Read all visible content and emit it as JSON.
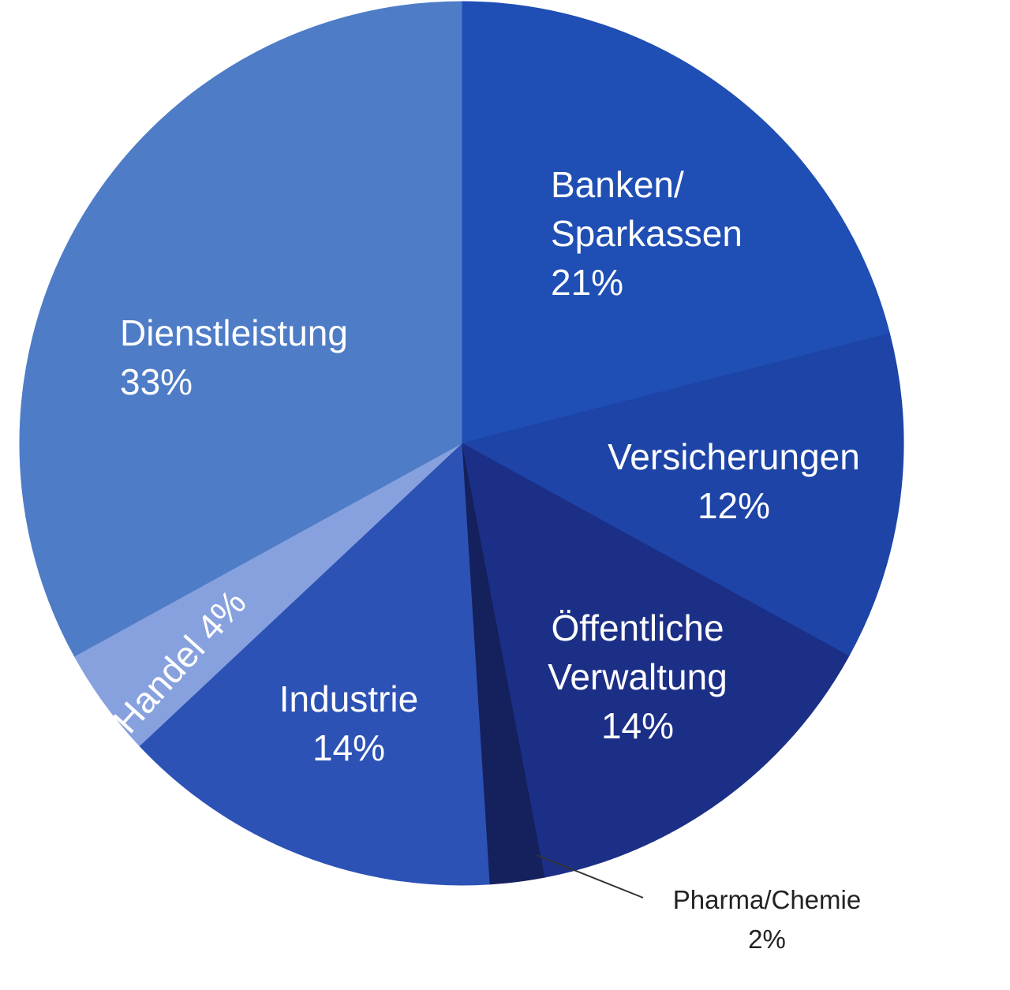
{
  "chart_data": {
    "type": "pie",
    "title": "",
    "slices": [
      {
        "name": "Banken/",
        "name2": "Sparkassen",
        "value": 21,
        "value_label": "21%",
        "color": "#1f4fb4"
      },
      {
        "name": "Versicherungen",
        "value": 12,
        "value_label": "12%",
        "color": "#1d44a6"
      },
      {
        "name": "Öffentliche",
        "name2": "Verwaltung",
        "value": 14,
        "value_label": "14%",
        "color": "#1c2f87"
      },
      {
        "name": "Pharma/Chemie",
        "value": 2,
        "value_label": "2%",
        "color": "#15215c"
      },
      {
        "name": "Industrie",
        "value": 14,
        "value_label": "14%",
        "color": "#2d52b5"
      },
      {
        "name": "Handel",
        "value": 4,
        "value_label": "4%",
        "color": "#87a1de"
      },
      {
        "name": "Dienstleistung",
        "value": 33,
        "value_label": "33%",
        "color": "#4e7cc7"
      }
    ],
    "start_angle_deg": 0,
    "direction": "clockwise",
    "legend": "none"
  }
}
